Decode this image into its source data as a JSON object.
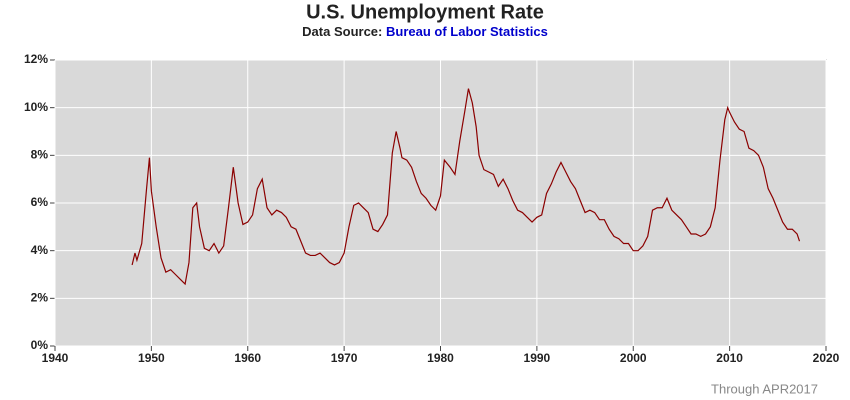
{
  "chart_data": {
    "type": "line",
    "title": "U.S. Unemployment Rate",
    "subtitle": "Data Source:",
    "source": "Bureau of Labor Statistics",
    "note": "Through APR2017",
    "color": "#8b0000",
    "grid": true,
    "x": [
      1948.0,
      1948.3,
      1948.5,
      1949.0,
      1949.5,
      1949.8,
      1950.0,
      1950.5,
      1951.0,
      1951.5,
      1952.0,
      1952.5,
      1953.0,
      1953.5,
      1953.9,
      1954.3,
      1954.7,
      1955.0,
      1955.5,
      1956.0,
      1956.5,
      1957.0,
      1957.5,
      1958.0,
      1958.5,
      1959.0,
      1959.5,
      1960.0,
      1960.5,
      1961.0,
      1961.5,
      1962.0,
      1962.5,
      1963.0,
      1963.5,
      1964.0,
      1964.5,
      1965.0,
      1965.5,
      1966.0,
      1966.5,
      1967.0,
      1967.5,
      1968.0,
      1968.5,
      1969.0,
      1969.5,
      1970.0,
      1970.5,
      1971.0,
      1971.5,
      1972.0,
      1972.5,
      1973.0,
      1973.5,
      1974.0,
      1974.5,
      1975.0,
      1975.4,
      1975.8,
      1976.0,
      1976.5,
      1977.0,
      1977.5,
      1978.0,
      1978.5,
      1979.0,
      1979.5,
      1980.0,
      1980.4,
      1981.0,
      1981.5,
      1982.0,
      1982.5,
      1982.9,
      1983.3,
      1983.7,
      1984.0,
      1984.5,
      1985.0,
      1985.5,
      1986.0,
      1986.5,
      1987.0,
      1987.5,
      1988.0,
      1988.5,
      1989.0,
      1989.5,
      1990.0,
      1990.5,
      1991.0,
      1991.5,
      1992.0,
      1992.5,
      1993.0,
      1993.5,
      1994.0,
      1994.5,
      1995.0,
      1995.5,
      1996.0,
      1996.5,
      1997.0,
      1997.5,
      1998.0,
      1998.5,
      1999.0,
      1999.5,
      2000.0,
      2000.5,
      2001.0,
      2001.5,
      2002.0,
      2002.5,
      2003.0,
      2003.5,
      2004.0,
      2004.5,
      2005.0,
      2005.5,
      2006.0,
      2006.5,
      2007.0,
      2007.5,
      2008.0,
      2008.5,
      2009.0,
      2009.5,
      2009.8,
      2010.0,
      2010.5,
      2011.0,
      2011.5,
      2012.0,
      2012.5,
      2013.0,
      2013.5,
      2014.0,
      2014.5,
      2015.0,
      2015.5,
      2016.0,
      2016.5,
      2017.0,
      2017.25
    ],
    "values": [
      3.4,
      3.9,
      3.6,
      4.3,
      6.6,
      7.9,
      6.5,
      5.0,
      3.7,
      3.1,
      3.2,
      3.0,
      2.8,
      2.6,
      3.5,
      5.8,
      6.0,
      5.0,
      4.1,
      4.0,
      4.3,
      3.9,
      4.2,
      5.8,
      7.5,
      6.0,
      5.1,
      5.2,
      5.5,
      6.6,
      7.0,
      5.8,
      5.5,
      5.7,
      5.6,
      5.4,
      5.0,
      4.9,
      4.4,
      3.9,
      3.8,
      3.8,
      3.9,
      3.7,
      3.5,
      3.4,
      3.5,
      3.9,
      5.0,
      5.9,
      6.0,
      5.8,
      5.6,
      4.9,
      4.8,
      5.1,
      5.5,
      8.1,
      9.0,
      8.3,
      7.9,
      7.8,
      7.5,
      6.9,
      6.4,
      6.2,
      5.9,
      5.7,
      6.3,
      7.8,
      7.5,
      7.2,
      8.6,
      9.8,
      10.8,
      10.2,
      9.2,
      8.0,
      7.4,
      7.3,
      7.2,
      6.7,
      7.0,
      6.6,
      6.1,
      5.7,
      5.6,
      5.4,
      5.2,
      5.4,
      5.5,
      6.4,
      6.8,
      7.3,
      7.7,
      7.3,
      6.9,
      6.6,
      6.1,
      5.6,
      5.7,
      5.6,
      5.3,
      5.3,
      4.9,
      4.6,
      4.5,
      4.3,
      4.3,
      4.0,
      4.0,
      4.2,
      4.6,
      5.7,
      5.8,
      5.8,
      6.2,
      5.7,
      5.5,
      5.3,
      5.0,
      4.7,
      4.7,
      4.6,
      4.7,
      5.0,
      5.8,
      7.8,
      9.5,
      10.0,
      9.8,
      9.4,
      9.1,
      9.0,
      8.3,
      8.2,
      8.0,
      7.5,
      6.6,
      6.2,
      5.7,
      5.2,
      4.9,
      4.9,
      4.7,
      4.4
    ],
    "xlim": [
      1940,
      2020
    ],
    "xticks": [
      1940,
      1950,
      1960,
      1970,
      1980,
      1990,
      2000,
      2010,
      2020
    ],
    "ylim": [
      0,
      12
    ],
    "yticks": [
      {
        "value": 0,
        "label": "0%"
      },
      {
        "value": 2,
        "label": "2%"
      },
      {
        "value": 4,
        "label": "4%"
      },
      {
        "value": 6,
        "label": "6%"
      },
      {
        "value": 8,
        "label": "8%"
      },
      {
        "value": 10,
        "label": "10%"
      },
      {
        "value": 12,
        "label": "12%"
      }
    ]
  }
}
